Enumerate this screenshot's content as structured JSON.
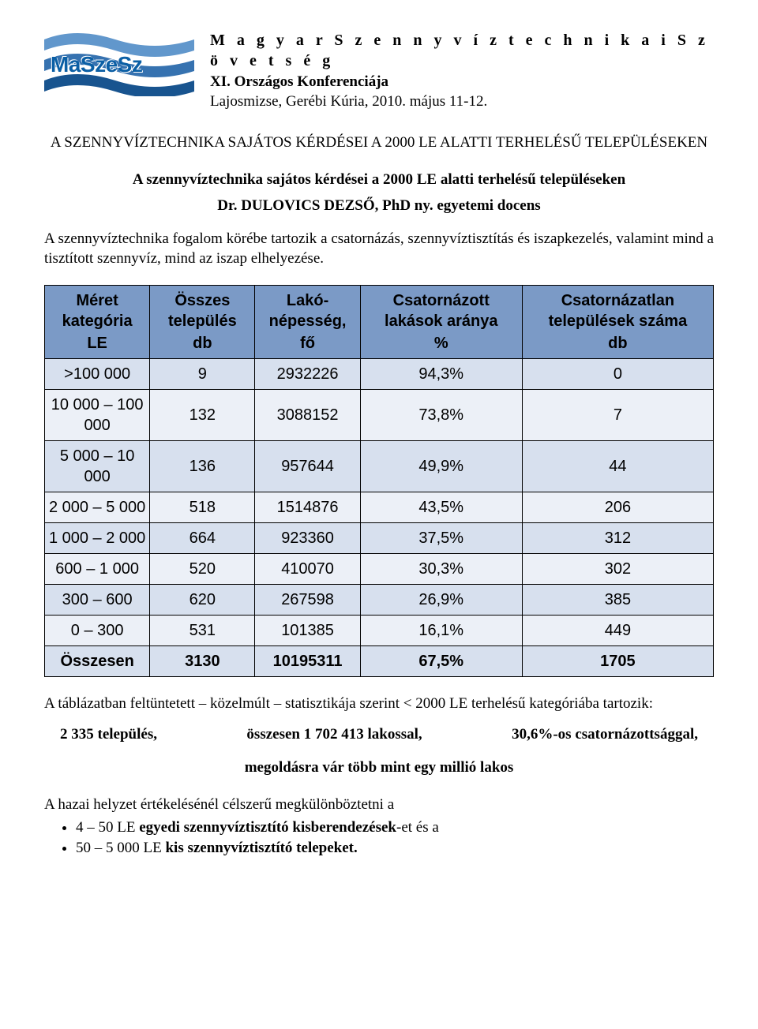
{
  "header": {
    "logo_text": "MaSzeSz",
    "org_title": "M a g y a r   S z e n n y v í z t e c h n i k a i   S z ö v e t s é g",
    "conference_line": "XI. Országos Konferenciája",
    "location_line": "Lajosmizse, Gerébi Kúria, 2010. május 11-12.",
    "wave_colors": [
      "#6197cc",
      "#3672b0",
      "#18548f"
    ]
  },
  "titles": {
    "upper": "A SZENNYVÍZTECHNIKA SAJÁTOS KÉRDÉSEI A 2000 LE ALATTI TERHELÉSŰ TELEPÜLÉSEKEN",
    "lower": "A szennyvíztechnika sajátos kérdései a 2000 LE alatti terhelésű településeken",
    "author": "Dr. DULOVICS DEZSŐ, PhD ny. egyetemi docens"
  },
  "intro_paragraph": "A szennyvíztechnika fogalom körébe tartozik a csatornázás, szennyvíztisztítás és iszapkezelés, valamint mind a tisztított szennyvíz, mind az iszap elhelyezése.",
  "table": {
    "type": "table",
    "header_bg": "#7b9ac6",
    "row_odd_bg": "#d7e0ee",
    "row_even_bg": "#ecf0f7",
    "border_color": "#000000",
    "font_family": "Arial",
    "font_size_pt": 15,
    "columns": [
      {
        "line1": "Méret kategória",
        "line2": "LE"
      },
      {
        "line1": "Összes település",
        "line2": "db"
      },
      {
        "line1": "Lakó-népesség,",
        "line2": "fő"
      },
      {
        "line1": "Csatornázott lakások aránya",
        "line2": "%"
      },
      {
        "line1": "Csatornázatlan települések száma",
        "line2": "db"
      }
    ],
    "rows": [
      [
        ">100 000",
        "9",
        "2932226",
        "94,3%",
        "0"
      ],
      [
        "10 000 – 100 000",
        "132",
        "3088152",
        "73,8%",
        "7"
      ],
      [
        "5 000 – 10 000",
        "136",
        "957644",
        "49,9%",
        "44"
      ],
      [
        "2 000 – 5 000",
        "518",
        "1514876",
        "43,5%",
        "206"
      ],
      [
        "1 000 – 2 000",
        "664",
        "923360",
        "37,5%",
        "312"
      ],
      [
        "600 – 1 000",
        "520",
        "410070",
        "30,3%",
        "302"
      ],
      [
        "300 – 600",
        "620",
        "267598",
        "26,9%",
        "385"
      ],
      [
        "0 – 300",
        "531",
        "101385",
        "16,1%",
        "449"
      ]
    ],
    "sum_row": [
      "Összesen",
      "3130",
      "10195311",
      "67,5%",
      "1705"
    ]
  },
  "after_table_text": "A táblázatban feltüntetett – közelmúlt – statisztikája szerint < 2000 LE terhelésű kategóriába tartozik:",
  "stats": {
    "settlements": "2 335 település,",
    "inhabitants": "összesen 1 702 413 lakossal,",
    "sewered": "30,6%-os csatornázottsággal,"
  },
  "waiting_line": "megoldásra vár több mint egy millió lakos",
  "distinguish_text": "A hazai helyzet értékelésénél célszerű  megkülönböztetni a",
  "bullets": [
    {
      "prefix": "4 – 50 LE ",
      "bold": "egyedi szennyvíztisztító kisberendezések",
      "suffix": "-et és a"
    },
    {
      "prefix": "50 – 5 000 LE ",
      "bold": "kis szennyvíztisztító telepeket.",
      "suffix": ""
    }
  ]
}
